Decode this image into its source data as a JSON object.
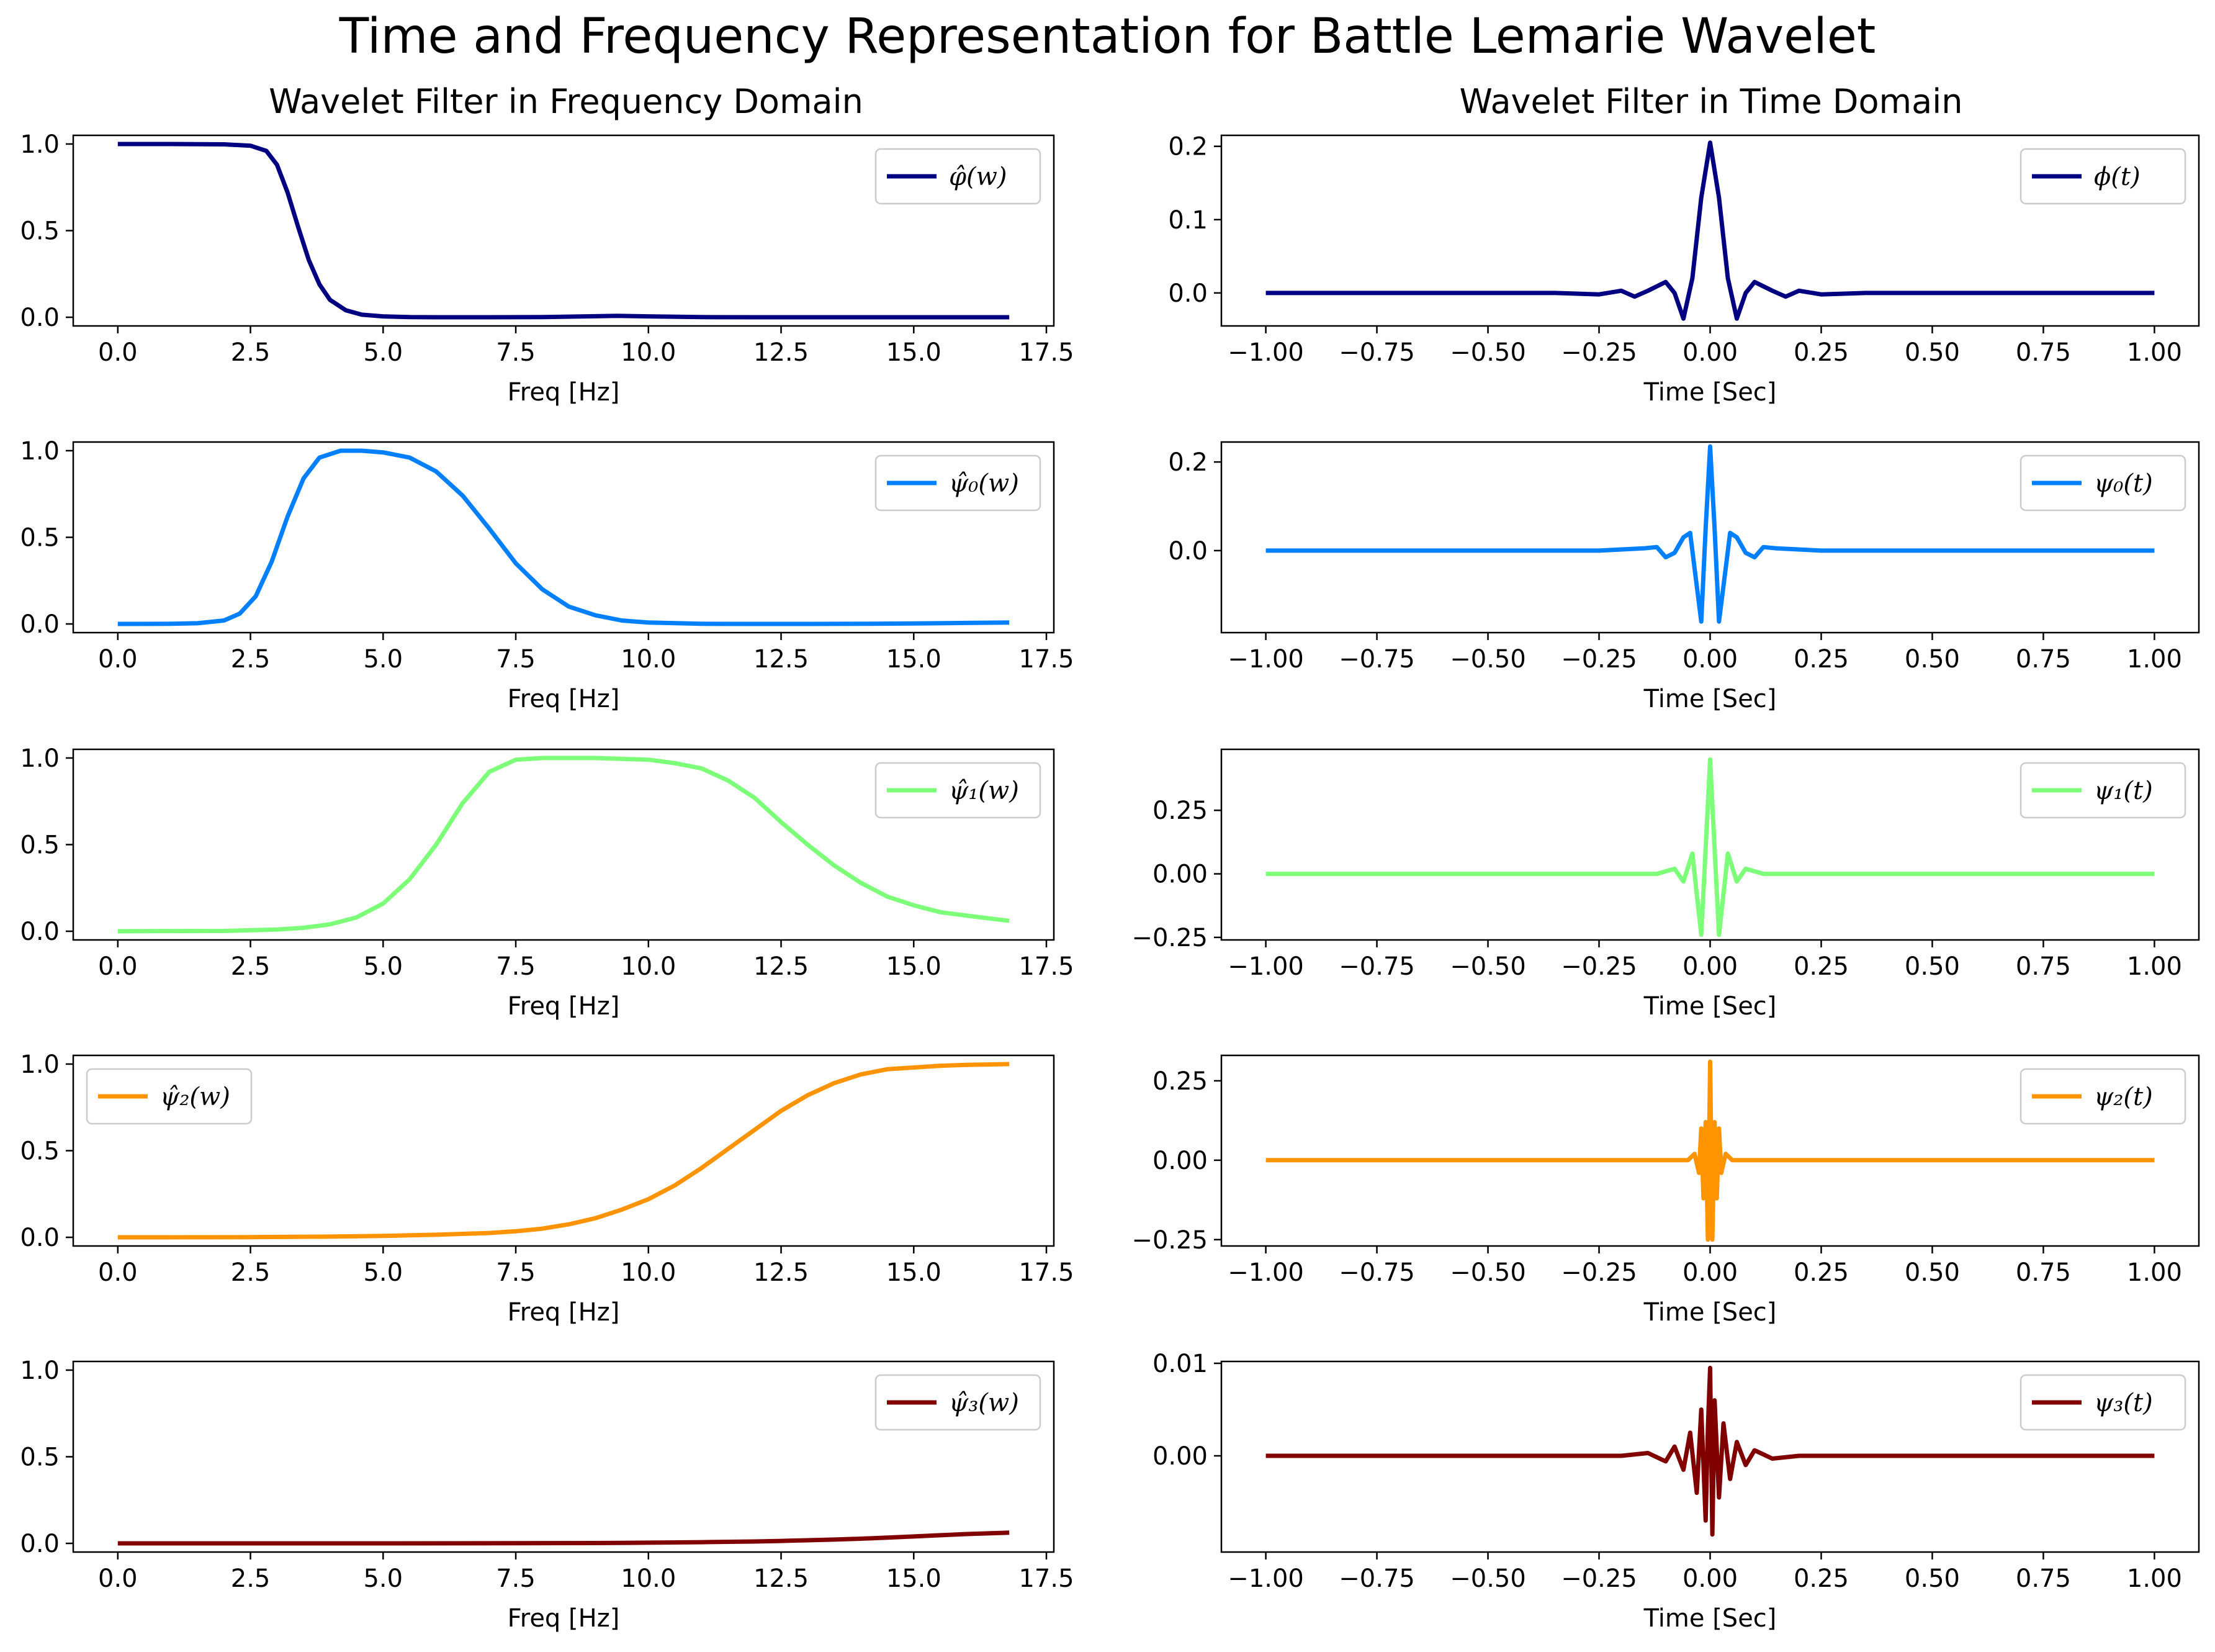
{
  "title": "Time and Frequency Representation for Battle Lemarie Wavelet",
  "columns": {
    "left_title": "Wavelet Filter in Frequency Domain",
    "right_title": "Wavelet Filter in Time Domain"
  },
  "colors": {
    "phi": "#000080",
    "psi0": "#0080ff",
    "psi1": "#7dff7a",
    "psi2": "#ff9400",
    "psi3": "#800000"
  },
  "chart_data": [
    {
      "type": "line",
      "panel": "freq-phi",
      "xlabel": "Freq [Hz]",
      "ylabel": "",
      "xlim": [
        -0.84,
        17.64
      ],
      "ylim": [
        -0.05,
        1.05
      ],
      "xticks": [
        "0.0",
        "2.5",
        "5.0",
        "7.5",
        "10.0",
        "12.5",
        "15.0",
        "17.5"
      ],
      "yticks": [
        "0.0",
        "0.5",
        "1.0"
      ],
      "legend": "top-right",
      "legend_label": "φ̂(w)",
      "color": "#000080",
      "series": [
        {
          "x": [
            0,
            1,
            2,
            2.5,
            2.8,
            3.0,
            3.2,
            3.4,
            3.6,
            3.8,
            4.0,
            4.3,
            4.6,
            5.0,
            5.5,
            6,
            7,
            8,
            9,
            9.4,
            10,
            11,
            12,
            13,
            14,
            15,
            16,
            16.8
          ],
          "y": [
            1.0,
            1.0,
            0.998,
            0.99,
            0.96,
            0.88,
            0.72,
            0.52,
            0.33,
            0.19,
            0.1,
            0.04,
            0.015,
            0.005,
            0.001,
            0,
            0,
            0.001,
            0.006,
            0.008,
            0.005,
            0.001,
            0,
            0,
            0,
            0,
            0,
            0
          ]
        }
      ]
    },
    {
      "type": "line",
      "panel": "time-phi",
      "xlabel": "Time [Sec]",
      "ylabel": "",
      "xlim": [
        -1.1,
        1.1
      ],
      "ylim": [
        -0.045,
        0.215
      ],
      "xticks": [
        "−1.00",
        "−0.75",
        "−0.50",
        "−0.25",
        "0.00",
        "0.25",
        "0.50",
        "0.75",
        "1.00"
      ],
      "yticks": [
        "0.0",
        "0.1",
        "0.2"
      ],
      "legend": "top-right",
      "legend_label": "ϕ(t)",
      "color": "#000080",
      "series": [
        {
          "x": [
            -1,
            -0.35,
            -0.25,
            -0.2,
            -0.17,
            -0.14,
            -0.1,
            -0.08,
            -0.06,
            -0.04,
            -0.02,
            0,
            0.02,
            0.04,
            0.06,
            0.08,
            0.1,
            0.14,
            0.17,
            0.2,
            0.25,
            0.35,
            1
          ],
          "y": [
            0,
            0,
            -0.002,
            0.003,
            -0.005,
            0.003,
            0.015,
            0.0,
            -0.035,
            0.02,
            0.13,
            0.205,
            0.13,
            0.02,
            -0.035,
            0.0,
            0.015,
            0.003,
            -0.005,
            0.003,
            -0.002,
            0,
            0
          ]
        }
      ]
    },
    {
      "type": "line",
      "panel": "freq-psi0",
      "xlabel": "Freq [Hz]",
      "ylabel": "",
      "xlim": [
        -0.84,
        17.64
      ],
      "ylim": [
        -0.05,
        1.05
      ],
      "xticks": [
        "0.0",
        "2.5",
        "5.0",
        "7.5",
        "10.0",
        "12.5",
        "15.0",
        "17.5"
      ],
      "yticks": [
        "0.0",
        "0.5",
        "1.0"
      ],
      "legend": "top-right",
      "legend_label": "ψ̂₀(w)",
      "color": "#0080ff",
      "series": [
        {
          "x": [
            0,
            1,
            1.5,
            2,
            2.3,
            2.6,
            2.9,
            3.2,
            3.5,
            3.8,
            4.2,
            4.6,
            5,
            5.5,
            6,
            6.5,
            7,
            7.5,
            8,
            8.5,
            9,
            9.5,
            10,
            11,
            12,
            13,
            14,
            15,
            16,
            16.8
          ],
          "y": [
            0,
            0.001,
            0.004,
            0.02,
            0.06,
            0.16,
            0.36,
            0.62,
            0.84,
            0.96,
            1.0,
            1.0,
            0.99,
            0.96,
            0.88,
            0.74,
            0.55,
            0.35,
            0.2,
            0.1,
            0.05,
            0.02,
            0.008,
            0.001,
            0,
            0,
            0.001,
            0.003,
            0.006,
            0.008
          ]
        }
      ]
    },
    {
      "type": "line",
      "panel": "time-psi0",
      "xlabel": "Time [Sec]",
      "ylabel": "",
      "xlim": [
        -1.1,
        1.1
      ],
      "ylim": [
        -0.185,
        0.245
      ],
      "xticks": [
        "−1.00",
        "−0.75",
        "−0.50",
        "−0.25",
        "0.00",
        "0.25",
        "0.50",
        "0.75",
        "1.00"
      ],
      "yticks": [
        "0.0",
        "0.2"
      ],
      "legend": "top-right",
      "legend_label": "ψ₀(t)",
      "color": "#0080ff",
      "series": [
        {
          "x": [
            -1,
            -0.25,
            -0.15,
            -0.12,
            -0.1,
            -0.08,
            -0.06,
            -0.045,
            -0.03,
            -0.02,
            -0.01,
            0,
            0.01,
            0.02,
            0.03,
            0.045,
            0.06,
            0.08,
            0.1,
            0.12,
            0.15,
            0.25,
            1
          ],
          "y": [
            0,
            0,
            0.005,
            0.008,
            -0.015,
            -0.005,
            0.03,
            0.04,
            -0.08,
            -0.16,
            0.05,
            0.235,
            0.05,
            -0.16,
            -0.08,
            0.04,
            0.03,
            -0.005,
            -0.015,
            0.008,
            0.005,
            0,
            0
          ]
        }
      ]
    },
    {
      "type": "line",
      "panel": "freq-psi1",
      "xlabel": "Freq [Hz]",
      "ylabel": "",
      "xlim": [
        -0.84,
        17.64
      ],
      "ylim": [
        -0.05,
        1.05
      ],
      "xticks": [
        "0.0",
        "2.5",
        "5.0",
        "7.5",
        "10.0",
        "12.5",
        "15.0",
        "17.5"
      ],
      "yticks": [
        "0.0",
        "0.5",
        "1.0"
      ],
      "legend": "top-right",
      "legend_label": "ψ̂₁(w)",
      "color": "#7dff7a",
      "series": [
        {
          "x": [
            0,
            2,
            3,
            3.5,
            4,
            4.5,
            5,
            5.5,
            6,
            6.5,
            7,
            7.5,
            8,
            9,
            10,
            10.5,
            11,
            11.5,
            12,
            12.5,
            13,
            13.5,
            14,
            14.5,
            15,
            15.5,
            16,
            16.8
          ],
          "y": [
            0,
            0.002,
            0.01,
            0.02,
            0.04,
            0.08,
            0.16,
            0.3,
            0.5,
            0.74,
            0.92,
            0.99,
            1.0,
            1.0,
            0.99,
            0.97,
            0.94,
            0.87,
            0.77,
            0.63,
            0.5,
            0.38,
            0.28,
            0.2,
            0.15,
            0.11,
            0.09,
            0.06
          ]
        }
      ]
    },
    {
      "type": "line",
      "panel": "time-psi1",
      "xlabel": "Time [Sec]",
      "ylabel": "",
      "xlim": [
        -1.1,
        1.1
      ],
      "ylim": [
        -0.26,
        0.49
      ],
      "xticks": [
        "−1.00",
        "−0.75",
        "−0.50",
        "−0.25",
        "0.00",
        "0.25",
        "0.50",
        "0.75",
        "1.00"
      ],
      "yticks": [
        "−0.25",
        "0.00",
        "0.25"
      ],
      "legend": "top-right",
      "legend_label": "ψ₁(t)",
      "color": "#7dff7a",
      "series": [
        {
          "x": [
            -1,
            -0.12,
            -0.08,
            -0.06,
            -0.04,
            -0.03,
            -0.02,
            -0.01,
            0,
            0.01,
            0.02,
            0.03,
            0.04,
            0.06,
            0.08,
            0.12,
            1
          ],
          "y": [
            0,
            0,
            0.02,
            -0.03,
            0.08,
            -0.08,
            -0.24,
            0.1,
            0.45,
            0.1,
            -0.24,
            -0.08,
            0.08,
            -0.03,
            0.02,
            0,
            0
          ]
        }
      ]
    },
    {
      "type": "line",
      "panel": "freq-psi2",
      "xlabel": "Freq [Hz]",
      "ylabel": "",
      "xlim": [
        -0.84,
        17.64
      ],
      "ylim": [
        -0.05,
        1.05
      ],
      "xticks": [
        "0.0",
        "2.5",
        "5.0",
        "7.5",
        "10.0",
        "12.5",
        "15.0",
        "17.5"
      ],
      "yticks": [
        "0.0",
        "0.5",
        "1.0"
      ],
      "legend": "top-left",
      "legend_label": "ψ̂₂(w)",
      "color": "#ff9400",
      "series": [
        {
          "x": [
            0,
            2.5,
            4,
            5,
            6,
            7,
            7.5,
            8,
            8.5,
            9,
            9.5,
            10,
            10.5,
            11,
            11.5,
            12,
            12.5,
            13,
            13.5,
            14,
            14.5,
            15,
            15.5,
            16,
            16.8
          ],
          "y": [
            0,
            0.001,
            0.004,
            0.008,
            0.015,
            0.025,
            0.035,
            0.05,
            0.075,
            0.11,
            0.16,
            0.22,
            0.3,
            0.4,
            0.51,
            0.62,
            0.73,
            0.82,
            0.89,
            0.94,
            0.97,
            0.98,
            0.99,
            0.995,
            1.0
          ]
        }
      ]
    },
    {
      "type": "line",
      "panel": "time-psi2",
      "xlabel": "Time [Sec]",
      "ylabel": "",
      "xlim": [
        -1.1,
        1.1
      ],
      "ylim": [
        -0.27,
        0.33
      ],
      "xticks": [
        "−1.00",
        "−0.75",
        "−0.50",
        "−0.25",
        "0.00",
        "0.25",
        "0.50",
        "0.75",
        "1.00"
      ],
      "yticks": [
        "−0.25",
        "0.00",
        "0.25"
      ],
      "legend": "top-right",
      "legend_label": "ψ₂(t)",
      "color": "#ff9400",
      "series": [
        {
          "x": [
            -1,
            -0.05,
            -0.035,
            -0.025,
            -0.02,
            -0.015,
            -0.01,
            -0.005,
            0,
            0.005,
            0.01,
            0.015,
            0.02,
            0.025,
            0.035,
            0.05,
            1
          ],
          "y": [
            0,
            0,
            0.02,
            -0.04,
            0.1,
            -0.12,
            0.12,
            -0.25,
            0.31,
            -0.25,
            0.12,
            -0.12,
            0.1,
            -0.04,
            0.02,
            0,
            0
          ]
        }
      ]
    },
    {
      "type": "line",
      "panel": "freq-psi3",
      "xlabel": "Freq [Hz]",
      "ylabel": "",
      "xlim": [
        -0.84,
        17.64
      ],
      "ylim": [
        -0.05,
        1.05
      ],
      "xticks": [
        "0.0",
        "2.5",
        "5.0",
        "7.5",
        "10.0",
        "12.5",
        "15.0",
        "17.5"
      ],
      "yticks": [
        "0.0",
        "0.5",
        "1.0"
      ],
      "legend": "top-right",
      "legend_label": "ψ̂₃(w)",
      "color": "#800000",
      "series": [
        {
          "x": [
            0,
            5,
            7.5,
            9,
            10,
            11,
            12,
            12.5,
            13,
            13.5,
            14,
            14.5,
            15,
            15.5,
            16,
            16.8
          ],
          "y": [
            0,
            0,
            0.001,
            0.002,
            0.004,
            0.007,
            0.011,
            0.014,
            0.018,
            0.022,
            0.027,
            0.033,
            0.04,
            0.047,
            0.054,
            0.062
          ]
        }
      ]
    },
    {
      "type": "line",
      "panel": "time-psi3",
      "xlabel": "Time [Sec]",
      "ylabel": "",
      "xlim": [
        -1.1,
        1.1
      ],
      "ylim": [
        -0.0104,
        0.0102
      ],
      "xticks": [
        "−1.00",
        "−0.75",
        "−0.50",
        "−0.25",
        "0.00",
        "0.25",
        "0.50",
        "0.75",
        "1.00"
      ],
      "yticks": [
        "0.00",
        "0.01"
      ],
      "legend": "top-right",
      "legend_label": "ψ₃(t)",
      "color": "#800000",
      "series": [
        {
          "x": [
            -1,
            -0.2,
            -0.14,
            -0.1,
            -0.08,
            -0.06,
            -0.045,
            -0.03,
            -0.02,
            -0.01,
            -0.005,
            0,
            0.005,
            0.01,
            0.02,
            0.03,
            0.045,
            0.06,
            0.08,
            0.1,
            0.14,
            0.2,
            1
          ],
          "y": [
            0,
            0,
            0.0003,
            -0.0006,
            0.001,
            -0.0015,
            0.0025,
            -0.004,
            0.005,
            -0.007,
            0.003,
            0.0095,
            -0.0085,
            0.006,
            -0.0045,
            0.0035,
            -0.0025,
            0.0015,
            -0.001,
            0.0006,
            -0.0003,
            0,
            0
          ]
        }
      ]
    }
  ]
}
